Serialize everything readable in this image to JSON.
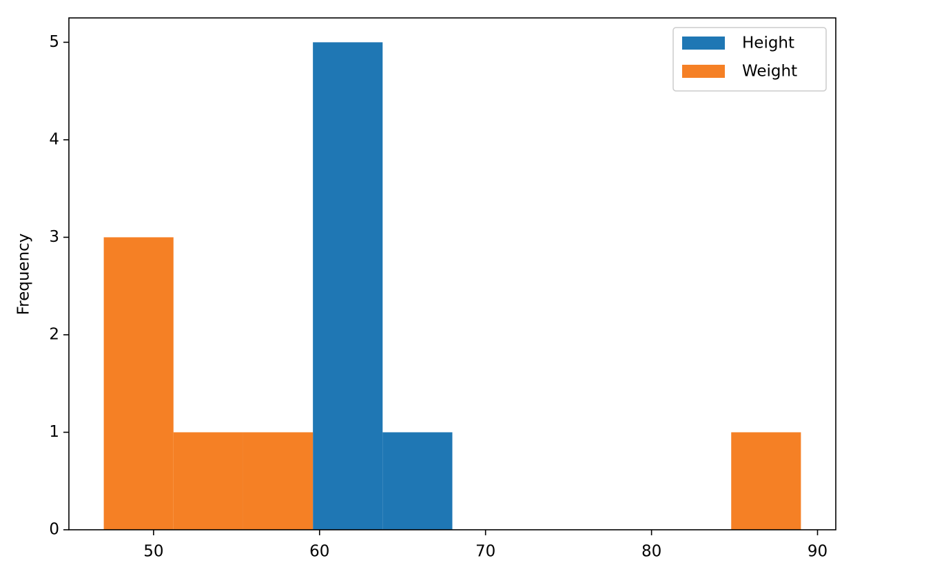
{
  "chart_data": {
    "type": "histogram",
    "y_label": "Frequency",
    "bins": [
      47,
      51.2,
      55.4,
      59.6,
      63.8,
      68,
      72.2,
      76.4,
      80.6,
      84.8,
      89
    ],
    "series": [
      {
        "name": "Height",
        "color": "#1f77b4",
        "values": [
          0,
          0,
          0,
          5,
          1,
          0,
          0,
          0,
          0,
          0
        ]
      },
      {
        "name": "Weight",
        "color": "#f58025",
        "values": [
          3,
          1,
          1,
          0,
          0,
          0,
          0,
          0,
          0,
          1
        ]
      }
    ],
    "xlim": [
      44.9,
      91.1
    ],
    "xticks": [
      50,
      60,
      70,
      80,
      90
    ],
    "ylim": [
      0,
      5.25
    ],
    "yticks": [
      0,
      1,
      2,
      3,
      4,
      5
    ],
    "grid": false,
    "legend": "upper right"
  }
}
